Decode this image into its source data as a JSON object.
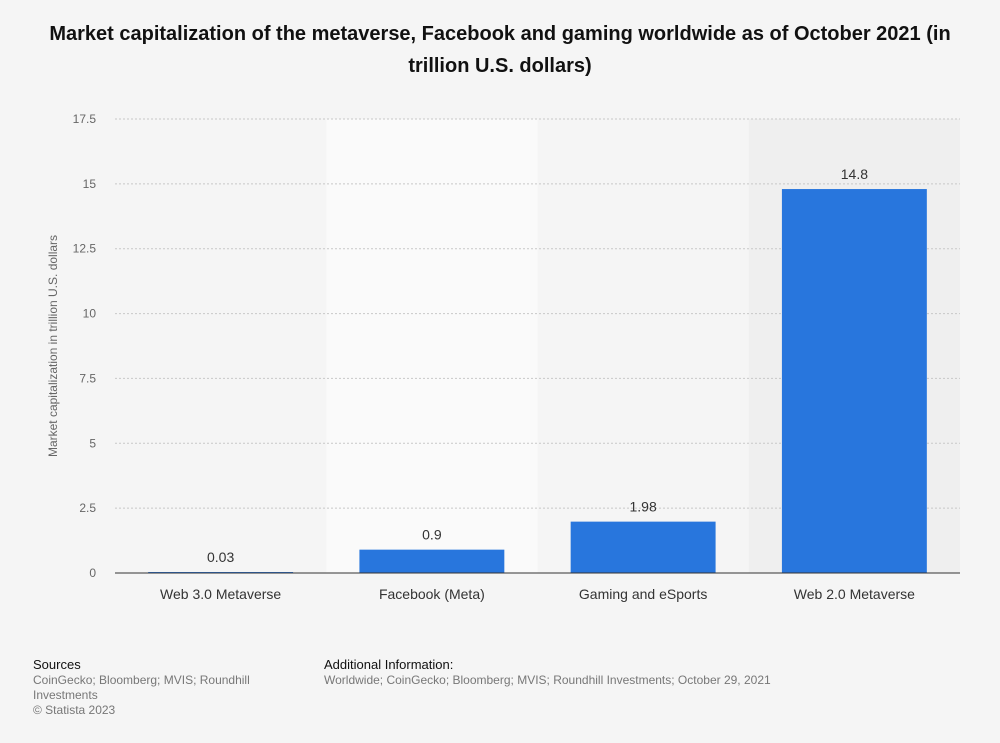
{
  "title": "Market capitalization of the metaverse, Facebook and gaming worldwide as of October 2021 (in trillion U.S. dollars)",
  "chart_data": {
    "type": "bar",
    "categories": [
      "Web 3.0 Metaverse",
      "Facebook (Meta)",
      "Gaming and eSports",
      "Web 2.0 Metaverse"
    ],
    "values": [
      0.03,
      0.9,
      1.98,
      14.8
    ],
    "data_labels": [
      "0.03",
      "0.9",
      "1.98",
      "14.8"
    ],
    "ylabel": "Market capitalization in trillion U.S. dollars",
    "xlabel": "",
    "ylim": [
      0,
      17.5
    ],
    "yticks": [
      0,
      2.5,
      5,
      7.5,
      10,
      12.5,
      15,
      17.5
    ],
    "ytick_labels": [
      "0",
      "2.5",
      "5",
      "7.5",
      "10",
      "12.5",
      "15",
      "17.5"
    ],
    "bar_color": "#2876dd",
    "grid": true
  },
  "footer": {
    "sources_heading": "Sources",
    "sources_text": "CoinGecko; Bloomberg; MVIS; Roundhill Investments",
    "copyright": "© Statista 2023",
    "additional_heading": "Additional Information:",
    "additional_text": "Worldwide; CoinGecko; Bloomberg; MVIS; Roundhill Investments; October 29, 2021"
  }
}
